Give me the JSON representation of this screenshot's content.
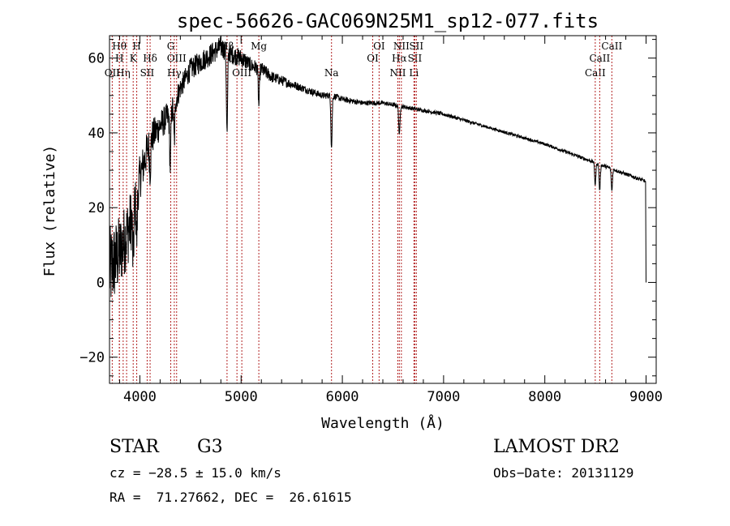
{
  "chart_data": {
    "type": "line",
    "title": "spec-56626-GAC069N25M1_sp12-077.fits",
    "xlabel": "Wavelength (Å)",
    "ylabel": "Flux (relative)",
    "xlim": [
      3700,
      9100
    ],
    "ylim": [
      -27,
      66
    ],
    "xticks": [
      4000,
      5000,
      6000,
      7000,
      8000,
      9000
    ],
    "yticks": [
      -20,
      0,
      20,
      40,
      60
    ],
    "xtick_labels": [
      "4000",
      "5000",
      "6000",
      "7000",
      "8000",
      "9000"
    ],
    "ytick_labels": [
      "−20",
      "0",
      "20",
      "40",
      "60"
    ],
    "series_color": "#000000",
    "line_marker_color": "#b22222",
    "continuum": {
      "x": [
        3700,
        3800,
        3900,
        4000,
        4100,
        4200,
        4300,
        4400,
        4500,
        4600,
        4700,
        4800,
        4900,
        5000,
        5100,
        5200,
        5300,
        5400,
        5500,
        5600,
        5700,
        5800,
        5900,
        6000,
        6200,
        6400,
        6600,
        6800,
        7000,
        7500,
        8000,
        8500,
        8900,
        9000
      ],
      "y": [
        3,
        8,
        15,
        28,
        38,
        42,
        45,
        52,
        57,
        59,
        61,
        63,
        61,
        60,
        58,
        57,
        55,
        54,
        53,
        52,
        51,
        50,
        50,
        49,
        48,
        48,
        47,
        46,
        45,
        41,
        37,
        32,
        28,
        27
      ],
      "noise": [
        12,
        10,
        9,
        6,
        5,
        4,
        4,
        3,
        3,
        3,
        3,
        3,
        2.5,
        2.5,
        2,
        2,
        1.6,
        1.4,
        1.2,
        1.0,
        1.0,
        0.9,
        0.9,
        0.8,
        0.7,
        0.6,
        0.6,
        0.5,
        0.5,
        0.4,
        0.4,
        0.5,
        0.5,
        0.5
      ]
    },
    "absorption": [
      {
        "x": 3934,
        "depth": 14
      },
      {
        "x": 3969,
        "depth": 12
      },
      {
        "x": 4101,
        "depth": 8
      },
      {
        "x": 4300,
        "depth": 14
      },
      {
        "x": 4340,
        "depth": 10
      },
      {
        "x": 4861,
        "depth": 22
      },
      {
        "x": 5175,
        "depth": 10
      },
      {
        "x": 5893,
        "depth": 14
      },
      {
        "x": 6563,
        "depth": 8
      },
      {
        "x": 8498,
        "depth": 6
      },
      {
        "x": 8542,
        "depth": 7
      },
      {
        "x": 8662,
        "depth": 6
      }
    ],
    "end_drop": {
      "x": 9000,
      "y": 0
    },
    "line_markers": [
      {
        "x": 3727,
        "label": "OII",
        "row": 3
      },
      {
        "x": 3797,
        "label": "Hθ",
        "row": 1
      },
      {
        "x": 3798,
        "label": "H",
        "row": 2
      },
      {
        "x": 3835,
        "label": "Hη",
        "row": 3
      },
      {
        "x": 3869,
        "label": "",
        "row": 0
      },
      {
        "x": 3934,
        "label": "K",
        "row": 2
      },
      {
        "x": 3969,
        "label": "H",
        "row": 1
      },
      {
        "x": 4101,
        "label": "Hδ",
        "row": 2
      },
      {
        "x": 4072,
        "label": "SII",
        "row": 3
      },
      {
        "x": 4305,
        "label": "G",
        "row": 1
      },
      {
        "x": 4340,
        "label": "Hγ",
        "row": 3
      },
      {
        "x": 4363,
        "label": "OIII",
        "row": 2
      },
      {
        "x": 4861,
        "label": "Hβ",
        "row": 1
      },
      {
        "x": 4959,
        "label": "OIII",
        "row": 2
      },
      {
        "x": 5007,
        "label": "OIII",
        "row": 3
      },
      {
        "x": 5175,
        "label": "Mg",
        "row": 1
      },
      {
        "x": 5893,
        "label": "Na",
        "row": 3
      },
      {
        "x": 6300,
        "label": "OI",
        "row": 2
      },
      {
        "x": 6363,
        "label": "OI",
        "row": 1
      },
      {
        "x": 6548,
        "label": "NII",
        "row": 3
      },
      {
        "x": 6563,
        "label": "Hα",
        "row": 2
      },
      {
        "x": 6583,
        "label": "NII",
        "row": 1
      },
      {
        "x": 6707,
        "label": "Li",
        "row": 3
      },
      {
        "x": 6716,
        "label": "SII",
        "row": 2
      },
      {
        "x": 6731,
        "label": "SII",
        "row": 1
      },
      {
        "x": 8498,
        "label": "CaII",
        "row": 3
      },
      {
        "x": 8542,
        "label": "CaII",
        "row": 2
      },
      {
        "x": 8662,
        "label": "CaII",
        "row": 1
      }
    ]
  },
  "info": {
    "class_label": "STAR",
    "subclass": "G3",
    "survey": "LAMOST DR2",
    "cz": "cz = −28.5 ± 15.0 km/s",
    "obs_date": "Obs−Date: 20131129",
    "radec": "RA =  71.27662, DEC =  26.61615"
  }
}
